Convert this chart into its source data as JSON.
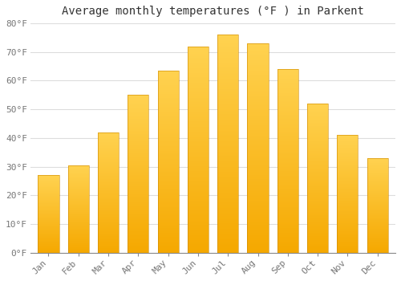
{
  "title": "Average monthly temperatures (°F ) in Parkent",
  "months": [
    "Jan",
    "Feb",
    "Mar",
    "Apr",
    "May",
    "Jun",
    "Jul",
    "Aug",
    "Sep",
    "Oct",
    "Nov",
    "Dec"
  ],
  "values": [
    27,
    30.5,
    42,
    55,
    63.5,
    72,
    76,
    73,
    64,
    52,
    41,
    33
  ],
  "ylim": [
    0,
    80
  ],
  "yticks": [
    0,
    10,
    20,
    30,
    40,
    50,
    60,
    70,
    80
  ],
  "ytick_labels": [
    "0°F",
    "10°F",
    "20°F",
    "30°F",
    "40°F",
    "50°F",
    "60°F",
    "70°F",
    "80°F"
  ],
  "bar_color_bottom": "#F5A800",
  "bar_color_top": "#FFCC44",
  "bar_edge_color": "#CC8800",
  "background_color": "#FFFFFF",
  "plot_bg_color": "#FFFFFF",
  "grid_color": "#DDDDDD",
  "title_fontsize": 10,
  "tick_fontsize": 8,
  "font_family": "monospace",
  "bar_width": 0.7
}
